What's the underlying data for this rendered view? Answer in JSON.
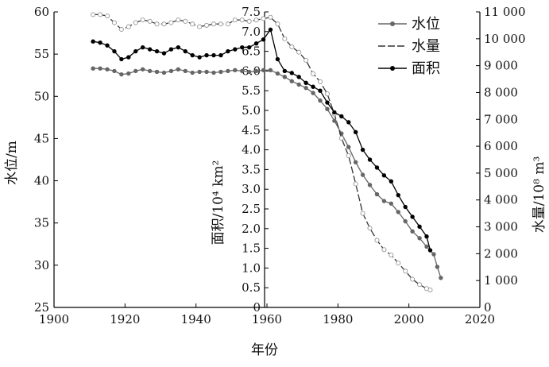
{
  "chart_data": {
    "type": "line",
    "title": "",
    "xlabel": "年份",
    "ylabel_level": "水位/m",
    "ylabel_area": "面积/10⁴ km²",
    "ylabel_volume": "水量/10⁸ m³",
    "xlim": [
      1900,
      2020
    ],
    "x_ticks": [
      "1900",
      "1920",
      "1940",
      "1960",
      "1980",
      "2000",
      "2020"
    ],
    "level_axis": {
      "range": [
        25,
        60
      ],
      "ticks": [
        "25",
        "30",
        "35",
        "40",
        "45",
        "50",
        "55",
        "60"
      ]
    },
    "area_axis": {
      "range": [
        0,
        7.5
      ],
      "ticks": [
        "0",
        "0.5",
        "1.0",
        "1.5",
        "2.0",
        "2.5",
        "3.0",
        "3.5",
        "4.0",
        "4.5",
        "5.0",
        "5.5",
        "6.0",
        "6.5",
        "7.0",
        "7.5"
      ]
    },
    "volume_axis": {
      "range": [
        0,
        11000
      ],
      "ticks": [
        "0",
        "1 000",
        "2 000",
        "3 000",
        "4 000",
        "5 000",
        "6 000",
        "7 000",
        "8 000",
        "9 000",
        "10 000",
        "11 000"
      ]
    },
    "legend": {
      "placement": "top-right",
      "items": [
        "水位",
        "水量",
        "面积"
      ]
    },
    "series": [
      {
        "name": "水位",
        "axis": "level",
        "color": "#666666",
        "marker": "filled-gray",
        "x": [
          1911,
          1913,
          1915,
          1917,
          1919,
          1921,
          1923,
          1925,
          1927,
          1929,
          1931,
          1933,
          1935,
          1937,
          1939,
          1941,
          1943,
          1945,
          1947,
          1949,
          1951,
          1953,
          1955,
          1957,
          1959,
          1961,
          1963,
          1965,
          1967,
          1969,
          1971,
          1973,
          1975,
          1977,
          1979,
          1981,
          1983,
          1985,
          1987,
          1989,
          1991,
          1993,
          1995,
          1997,
          1999,
          2001,
          2003,
          2005,
          2007,
          2008,
          2009
        ],
        "values": [
          53.3,
          53.3,
          53.2,
          53.0,
          52.6,
          52.7,
          53.0,
          53.2,
          53.0,
          52.9,
          52.8,
          53.0,
          53.2,
          53.0,
          52.8,
          52.9,
          52.9,
          52.8,
          52.9,
          53.0,
          53.1,
          53.0,
          52.9,
          53.0,
          53.1,
          53.1,
          52.7,
          52.3,
          51.8,
          51.4,
          51.0,
          50.4,
          49.5,
          48.5,
          47.1,
          45.6,
          44.0,
          42.2,
          40.7,
          39.5,
          38.4,
          37.6,
          37.3,
          36.3,
          35.2,
          34.0,
          33.2,
          32.2,
          31.3,
          29.8,
          28.5
        ]
      },
      {
        "name": "水量",
        "axis": "volume",
        "color": "#333333",
        "marker": "open-circle",
        "x": [
          1911,
          1913,
          1915,
          1917,
          1919,
          1921,
          1923,
          1925,
          1927,
          1929,
          1931,
          1933,
          1935,
          1937,
          1939,
          1941,
          1943,
          1945,
          1947,
          1949,
          1951,
          1953,
          1955,
          1957,
          1959,
          1961,
          1963,
          1965,
          1967,
          1969,
          1971,
          1973,
          1975,
          1977,
          1979,
          1981,
          1983,
          1985,
          1987,
          1989,
          1991,
          1993,
          1995,
          1997,
          1999,
          2001,
          2003,
          2005,
          2006
        ],
        "values": [
          10900,
          10900,
          10850,
          10600,
          10350,
          10450,
          10600,
          10700,
          10650,
          10550,
          10550,
          10600,
          10700,
          10650,
          10550,
          10450,
          10500,
          10550,
          10550,
          10550,
          10700,
          10700,
          10650,
          10700,
          10750,
          10800,
          10550,
          10000,
          9700,
          9500,
          9200,
          8700,
          8400,
          7950,
          7200,
          6300,
          5650,
          4600,
          3500,
          2950,
          2500,
          2150,
          1950,
          1650,
          1350,
          1050,
          850,
          700,
          650
        ]
      },
      {
        "name": "面积",
        "axis": "area",
        "color": "#000000",
        "marker": "filled-black",
        "x": [
          1911,
          1913,
          1915,
          1917,
          1919,
          1921,
          1923,
          1925,
          1927,
          1929,
          1931,
          1933,
          1935,
          1937,
          1939,
          1941,
          1943,
          1945,
          1947,
          1949,
          1951,
          1953,
          1955,
          1957,
          1959,
          1961,
          1963,
          1965,
          1967,
          1969,
          1971,
          1973,
          1975,
          1977,
          1979,
          1981,
          1983,
          1985,
          1987,
          1989,
          1991,
          1993,
          1995,
          1997,
          1999,
          2001,
          2003,
          2005,
          2006
        ],
        "values": [
          6.75,
          6.72,
          6.65,
          6.5,
          6.3,
          6.35,
          6.5,
          6.6,
          6.55,
          6.5,
          6.45,
          6.55,
          6.6,
          6.5,
          6.4,
          6.35,
          6.4,
          6.4,
          6.4,
          6.5,
          6.55,
          6.6,
          6.6,
          6.7,
          6.8,
          7.05,
          6.3,
          6.0,
          5.95,
          5.85,
          5.7,
          5.6,
          5.5,
          5.2,
          4.95,
          4.85,
          4.7,
          4.45,
          4.0,
          3.75,
          3.55,
          3.35,
          3.2,
          2.85,
          2.55,
          2.3,
          2.05,
          1.8,
          1.45
        ]
      }
    ]
  }
}
